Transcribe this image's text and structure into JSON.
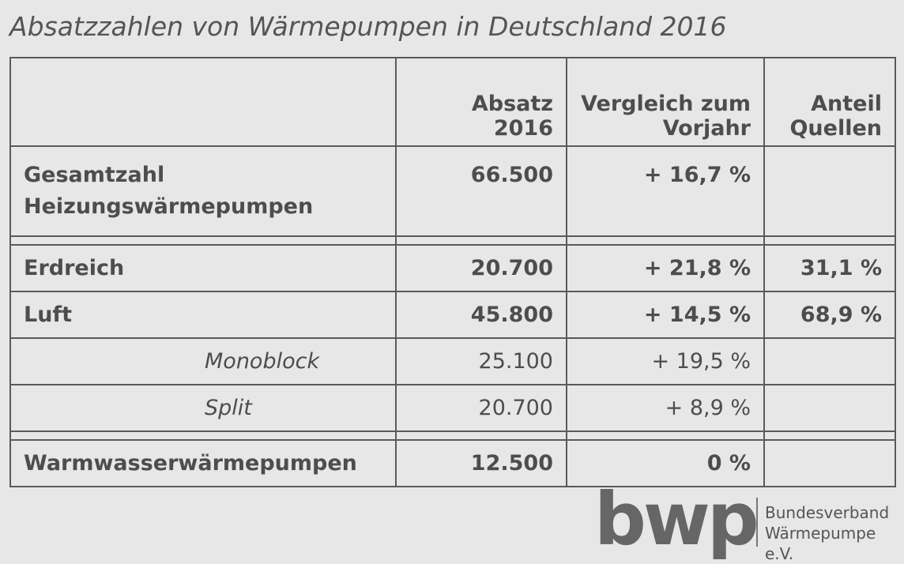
{
  "title": "Absatzzahlen von Wärmepumpen in Deutschland 2016",
  "table": {
    "header": {
      "sales": "Absatz 2016",
      "change": [
        "Vergleich zum",
        "Vorjahr"
      ],
      "share": [
        "Anteil",
        "Quellen"
      ]
    },
    "groups": [
      [
        {
          "label": [
            "Gesamtzahl",
            "Heizungswärmepumpen"
          ],
          "sales": "66.500",
          "change": "+ 16,7 %"
        }
      ],
      [
        {
          "label": [
            "Erdreich"
          ],
          "sales": "20.700",
          "change": "+ 21,8 %",
          "share": "31,1 %"
        },
        {
          "label": [
            "Luft"
          ],
          "sales": "45.800",
          "change": "+ 14,5 %",
          "share": "68,9 %",
          "subrows": [
            {
              "label": "Monoblock",
              "sales": "25.100",
              "change": "+ 19,5 %"
            },
            {
              "label": "Split",
              "sales": "20.700",
              "change": "+ 8,9 %"
            }
          ]
        }
      ],
      [
        {
          "label": [
            "Warmwasserwärmepumpen"
          ],
          "sales": "12.500",
          "change": "0 %"
        }
      ]
    ]
  },
  "logo": {
    "mark": "bwp",
    "lines": [
      "Bundesverband",
      "Wärmepumpe e.V."
    ]
  }
}
